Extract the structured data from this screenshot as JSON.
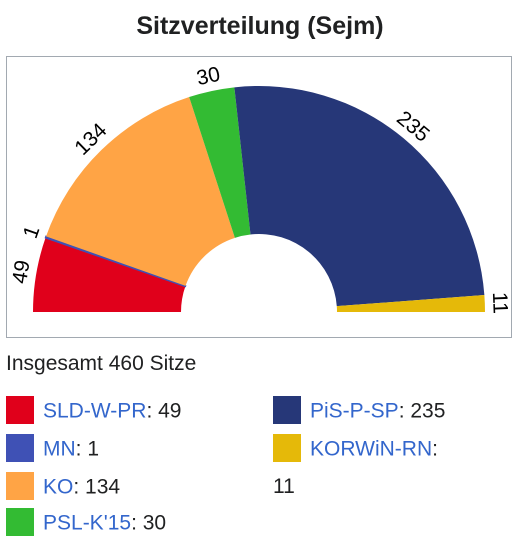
{
  "title": "Sitzverteilung (Sejm)",
  "total_label": "Insgesamt 460 Sitze",
  "chart_data": {
    "type": "pie",
    "title": "Sitzverteilung (Sejm)",
    "total": 460,
    "slices": [
      {
        "party": "SLD-W-PR",
        "seats": 49,
        "color": "#e0001b"
      },
      {
        "party": "MN",
        "seats": 1,
        "color": "#3f51b5"
      },
      {
        "party": "KO",
        "seats": 134,
        "color": "#ffa445"
      },
      {
        "party": "PSL-K'15",
        "seats": 30,
        "color": "#33bb33"
      },
      {
        "party": "PiS-P-SP",
        "seats": 235,
        "color": "#263778"
      },
      {
        "party": "KORWiN-RN",
        "seats": 11,
        "color": "#e5b909"
      }
    ]
  },
  "legend": [
    {
      "party": "SLD-W-PR",
      "suffix": ": 49"
    },
    {
      "party": "MN",
      "suffix": ": 1"
    },
    {
      "party": "KO",
      "suffix": ": 134"
    },
    {
      "party": "PSL-K'15",
      "suffix": ": 30"
    },
    {
      "party": "PiS-P-SP",
      "suffix": ": 235"
    },
    {
      "party": "KORWiN-RN",
      "suffix": ":",
      "continuation": "11"
    }
  ]
}
